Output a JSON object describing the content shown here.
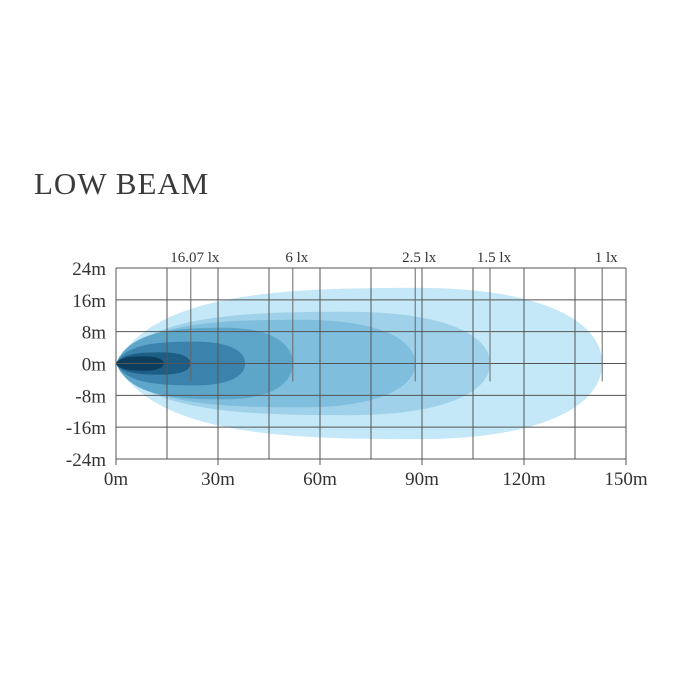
{
  "chart_data": {
    "type": "area",
    "title": "LOW BEAM",
    "xlabel": "",
    "ylabel": "",
    "x_unit": "m",
    "y_unit": "m",
    "xlim": [
      0,
      150
    ],
    "ylim": [
      -24,
      24
    ],
    "x_ticks": [
      "0m",
      "30m",
      "60m",
      "90m",
      "120m",
      "150m"
    ],
    "x_tick_values": [
      0,
      30,
      60,
      90,
      120,
      150
    ],
    "y_ticks": [
      "24m",
      "16m",
      "8m",
      "0m",
      "-8m",
      "-16m",
      "-24m"
    ],
    "y_tick_values": [
      24,
      16,
      8,
      0,
      -8,
      -16,
      -24
    ],
    "grid": true,
    "isolux_labels": [
      {
        "label": "16.07 lx",
        "x": 22
      },
      {
        "label": "6 lx",
        "x": 52
      },
      {
        "label": "2.5 lx",
        "x": 88
      },
      {
        "label": "1.5 lx",
        "x": 110
      },
      {
        "label": "1 lx",
        "x": 143
      }
    ],
    "beam_zones": [
      {
        "reach": 143,
        "half_width": 19,
        "color": "#c4e8f7"
      },
      {
        "reach": 110,
        "half_width": 13,
        "color": "#9fd2ea"
      },
      {
        "reach": 88,
        "half_width": 11,
        "color": "#7fbedd"
      },
      {
        "reach": 52,
        "half_width": 9,
        "color": "#5ea6c9"
      },
      {
        "reach": 38,
        "half_width": 5.5,
        "color": "#3b83ad"
      },
      {
        "reach": 22,
        "half_width": 2.8,
        "color": "#1d5e86"
      },
      {
        "reach": 14,
        "half_width": 1.8,
        "color": "#0d3d5c"
      }
    ]
  }
}
